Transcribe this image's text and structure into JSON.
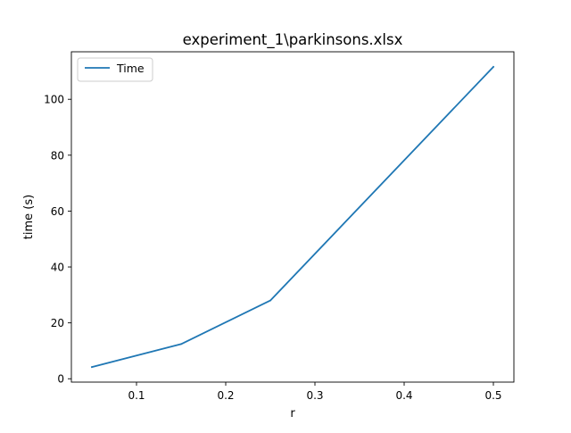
{
  "chart_data": {
    "type": "line",
    "title": "experiment_1\\parkinsons.xlsx",
    "xlabel": "r",
    "ylabel": "time (s)",
    "x": [
      0.05,
      0.15,
      0.25,
      0.5
    ],
    "series": [
      {
        "name": "Time",
        "values": [
          4.2,
          12.4,
          28.0,
          111.6
        ],
        "color": "#1f77b4"
      }
    ],
    "xlim": [
      0.027,
      0.523
    ],
    "ylim": [
      -1.2,
      117.0
    ],
    "xticks": [
      0.1,
      0.2,
      0.3,
      0.4,
      0.5
    ],
    "xtick_labels": [
      "0.1",
      "0.2",
      "0.3",
      "0.4",
      "0.5"
    ],
    "yticks": [
      0,
      20,
      40,
      60,
      80,
      100
    ],
    "ytick_labels": [
      "0",
      "20",
      "40",
      "60",
      "80",
      "100"
    ],
    "grid": false,
    "legend_position": "upper-left"
  }
}
